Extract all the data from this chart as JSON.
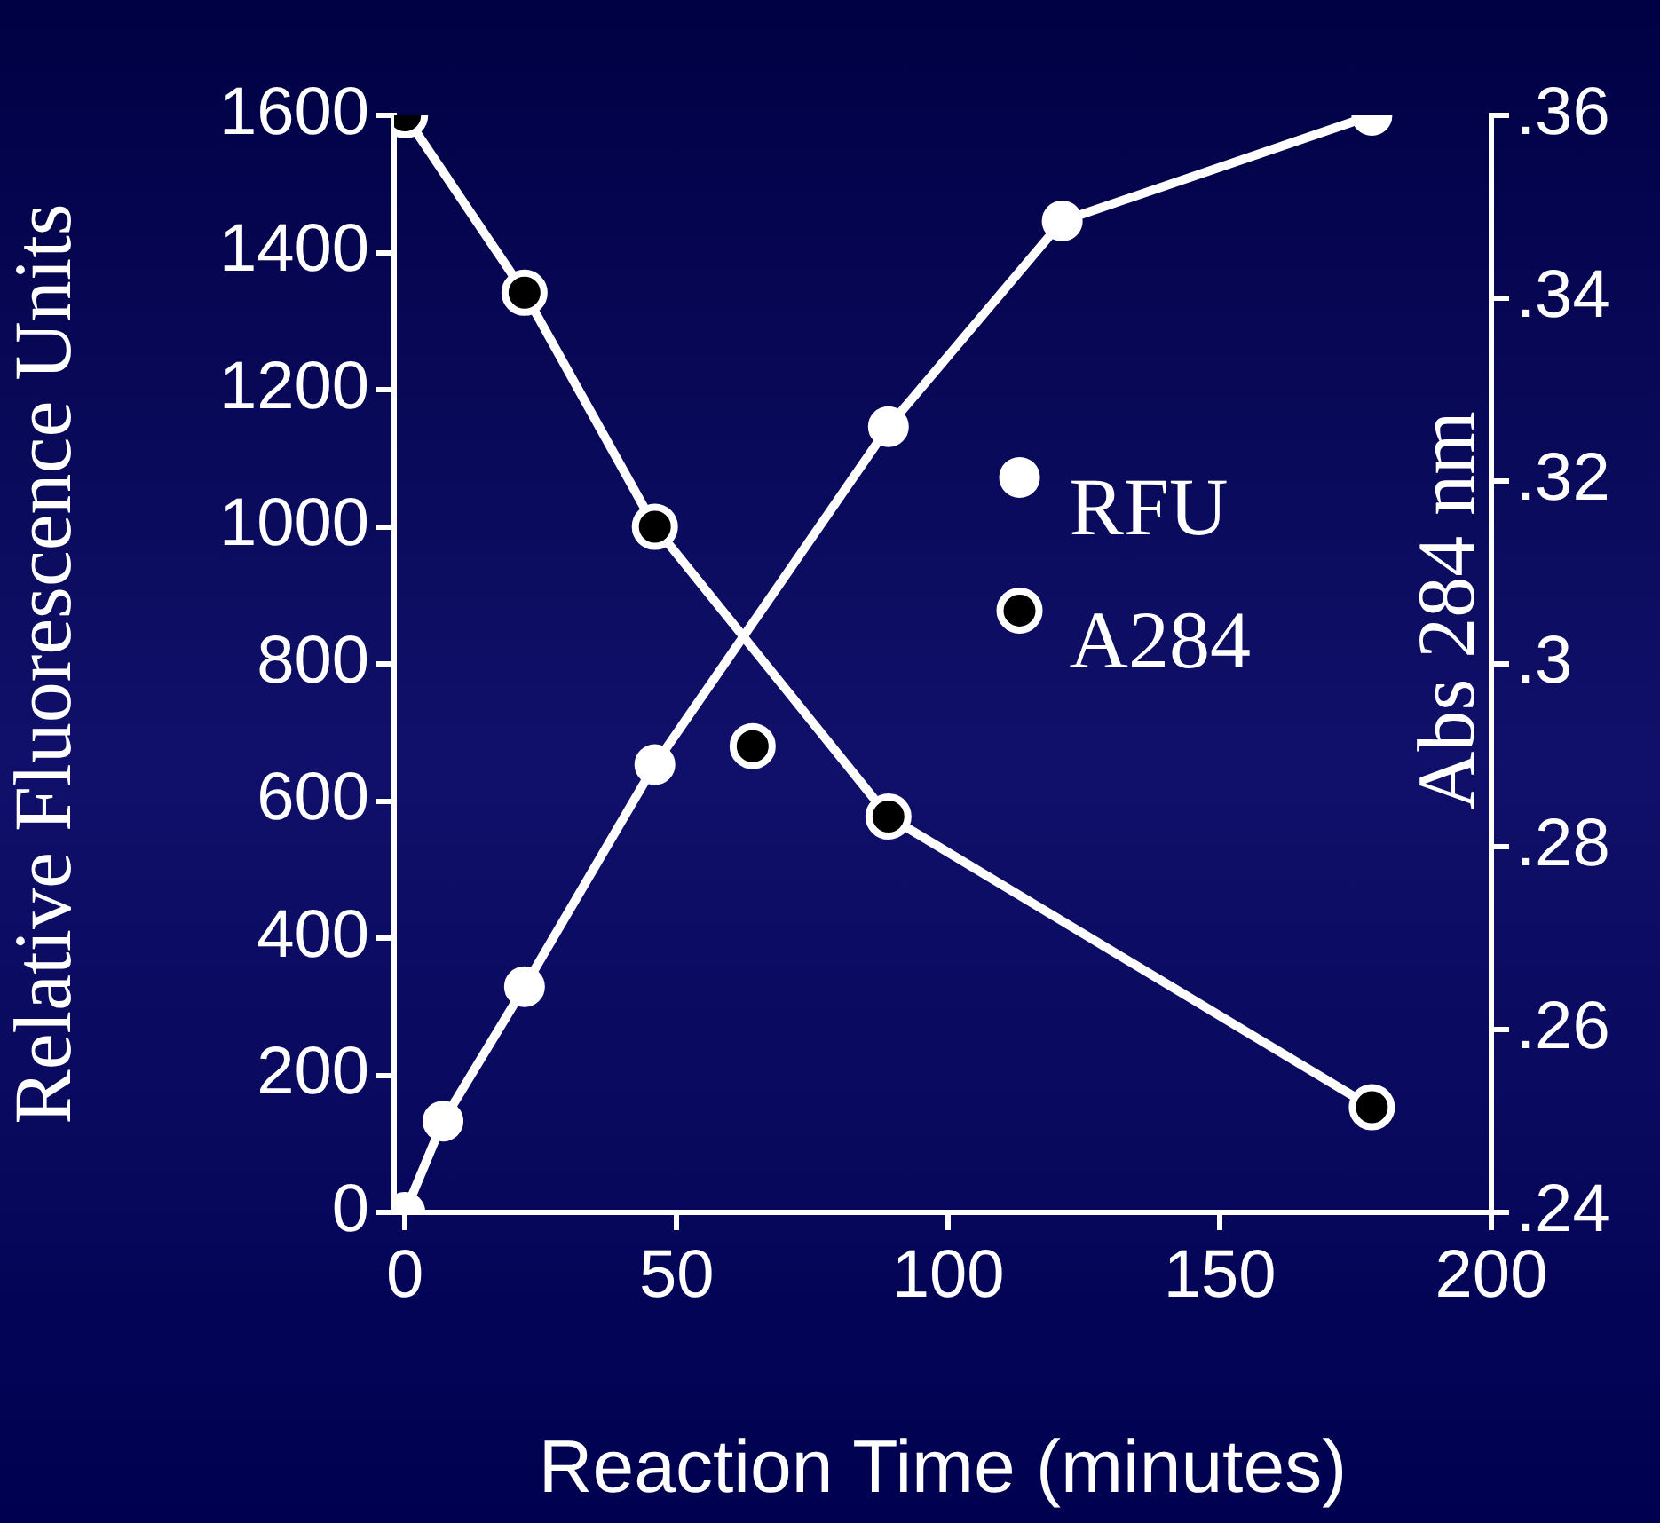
{
  "chart_data": {
    "type": "line",
    "xlabel": "Reaction Time (minutes)",
    "ylabel": "Relative Fluorescence Units",
    "y2label": "Abs 284 nm",
    "xlim": [
      -2,
      200
    ],
    "xticks": [
      0,
      50,
      100,
      150,
      200
    ],
    "ylim": [
      0,
      1600
    ],
    "yticks": [
      0,
      200,
      400,
      600,
      800,
      1000,
      1200,
      1400,
      1600
    ],
    "y2lim": [
      0.24,
      0.36
    ],
    "y2ticks": [
      {
        "value": 0.24,
        "label": ".24"
      },
      {
        "value": 0.26,
        "label": ".26"
      },
      {
        "value": 0.28,
        "label": ".28"
      },
      {
        "value": 0.3,
        "label": ".3"
      },
      {
        "value": 0.32,
        "label": ".32"
      },
      {
        "value": 0.34,
        "label": ".34"
      },
      {
        "value": 0.36,
        "label": ".36"
      }
    ],
    "grid": false,
    "legend": "right",
    "marker": "circle",
    "line_style": "solid",
    "series": [
      {
        "name": "RFU",
        "color": "#ffffff",
        "x": [
          0,
          7,
          22,
          46,
          89,
          121,
          178
        ],
        "values": [
          0,
          133,
          329,
          653,
          1146,
          1446,
          1600
        ]
      },
      {
        "name": "A284",
        "color": "#ffffff",
        "axis": "y2",
        "x": [
          0,
          22,
          46,
          89,
          178
        ],
        "values": [
          0.36,
          0.3406,
          0.315,
          0.2833,
          0.2515
        ]
      },
      {
        "type": "scatter",
        "color": "#ffffff",
        "axis": "y2",
        "x": [
          64
        ],
        "values": [
          0.291
        ]
      }
    ]
  }
}
